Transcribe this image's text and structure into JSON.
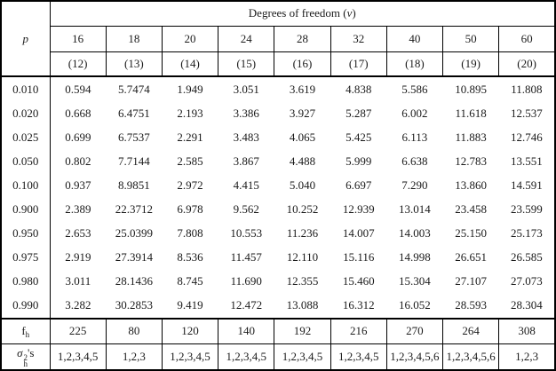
{
  "table": {
    "corner_label": "p",
    "group_header": {
      "prefix": "Degrees of freedom (",
      "symbol": "v",
      "suffix": ")"
    },
    "dof_columns": [
      "16",
      "18",
      "20",
      "24",
      "28",
      "32",
      "40",
      "50",
      "60"
    ],
    "column_indices": [
      "(12)",
      "(13)",
      "(14)",
      "(15)",
      "(16)",
      "(17)",
      "(18)",
      "(19)",
      "(20)"
    ],
    "rows": [
      {
        "p": "0.010",
        "values": [
          "0.594",
          "5.7474",
          "1.949",
          "3.051",
          "3.619",
          "4.838",
          "5.586",
          "10.895",
          "11.808"
        ]
      },
      {
        "p": "0.020",
        "values": [
          "0.668",
          "6.4751",
          "2.193",
          "3.386",
          "3.927",
          "5.287",
          "6.002",
          "11.618",
          "12.537"
        ]
      },
      {
        "p": "0.025",
        "values": [
          "0.699",
          "6.7537",
          "2.291",
          "3.483",
          "4.065",
          "5.425",
          "6.113",
          "11.883",
          "12.746"
        ]
      },
      {
        "p": "0.050",
        "values": [
          "0.802",
          "7.7144",
          "2.585",
          "3.867",
          "4.488",
          "5.999",
          "6.638",
          "12.783",
          "13.551"
        ]
      },
      {
        "p": "0.100",
        "values": [
          "0.937",
          "8.9851",
          "2.972",
          "4.415",
          "5.040",
          "6.697",
          "7.290",
          "13.860",
          "14.591"
        ]
      },
      {
        "p": "0.900",
        "values": [
          "2.389",
          "22.3712",
          "6.978",
          "9.562",
          "10.252",
          "12.939",
          "13.014",
          "23.458",
          "23.599"
        ]
      },
      {
        "p": "0.950",
        "values": [
          "2.653",
          "25.0399",
          "7.808",
          "10.553",
          "11.236",
          "14.007",
          "14.003",
          "25.150",
          "25.173"
        ]
      },
      {
        "p": "0.975",
        "values": [
          "2.919",
          "27.3914",
          "8.536",
          "11.457",
          "12.110",
          "15.116",
          "14.998",
          "26.651",
          "26.585"
        ]
      },
      {
        "p": "0.980",
        "values": [
          "3.011",
          "28.1436",
          "8.745",
          "11.690",
          "12.355",
          "15.460",
          "15.304",
          "27.107",
          "27.073"
        ]
      },
      {
        "p": "0.990",
        "values": [
          "3.282",
          "30.2853",
          "9.419",
          "12.472",
          "13.088",
          "16.312",
          "16.052",
          "28.593",
          "28.304"
        ]
      }
    ],
    "footer": {
      "fh_label": {
        "base": "f",
        "sub": "h"
      },
      "fh_values": [
        "225",
        "80",
        "120",
        "140",
        "192",
        "216",
        "270",
        "264",
        "308"
      ],
      "sigma_label": {
        "base": "σ",
        "sub": "h",
        "sup": "2",
        "suffix": "'s"
      },
      "sigma_values": [
        "1,2,3,4,5",
        "1,2,3",
        "1,2,3,4,5",
        "1,2,3,4,5",
        "1,2,3,4,5",
        "1,2,3,4,5",
        "1,2,3,4,5,6",
        "1,2,3,4,5,6",
        "1,2,3"
      ]
    }
  },
  "colors": {
    "border": "#000000",
    "text": "#1b1b1b",
    "background": "#ffffff"
  }
}
